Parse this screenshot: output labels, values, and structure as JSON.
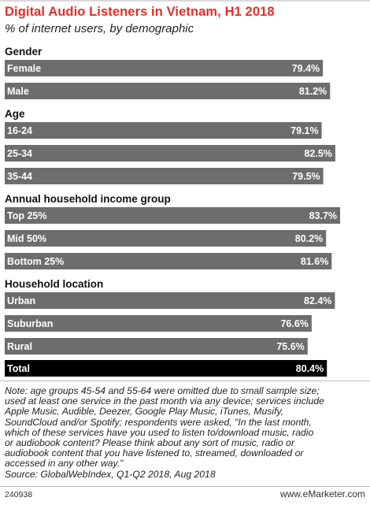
{
  "header": {
    "title": "Digital Audio Listeners in Vietnam, H1 2018",
    "subtitle": "% of internet users, by demographic"
  },
  "chart_data": {
    "type": "bar",
    "orientation": "horizontal",
    "xlim": [
      0,
      100
    ],
    "bar_color": "#6d6d6d",
    "total_bar_color": "#000000",
    "value_suffix": "%",
    "groups": [
      {
        "name": "Gender",
        "rows": [
          {
            "label": "Female",
            "value": 79.4
          },
          {
            "label": "Male",
            "value": 81.2
          }
        ]
      },
      {
        "name": "Age",
        "rows": [
          {
            "label": "16-24",
            "value": 79.1
          },
          {
            "label": "25-34",
            "value": 82.5
          },
          {
            "label": "35-44",
            "value": 79.5
          }
        ]
      },
      {
        "name": "Annual household income group",
        "rows": [
          {
            "label": "Top 25%",
            "value": 83.7
          },
          {
            "label": "Mid 50%",
            "value": 80.2
          },
          {
            "label": "Bottom 25%",
            "value": 81.6
          }
        ]
      },
      {
        "name": "Household location",
        "rows": [
          {
            "label": "Urban",
            "value": 82.4
          },
          {
            "label": "Suburban",
            "value": 76.6
          },
          {
            "label": "Rural",
            "value": 75.6
          }
        ]
      }
    ],
    "total": {
      "label": "Total",
      "value": 80.4
    }
  },
  "note": {
    "lines": [
      "Note: age groups 45-54 and 55-64 were omitted due to small sample size;",
      "used at least one service in the past month via any device; services include",
      "Apple Music, Audible, Deezer, Google Play Music, iTunes, Musify,",
      "SoundCloud and/or Spotify; respondents were asked, \"In the last month,",
      "which of these services have you used to listen to/download music, radio",
      "or audiobook content? Please think about any sort of music, radio or",
      "audiobook content that you have listened to, streamed, downloaded or",
      "accessed in any other way.\"",
      "Source: GlobalWebIndex, Q1-Q2 2018, Aug 2018"
    ]
  },
  "footer": {
    "id": "240938",
    "brand": "www.eMarketer.com"
  }
}
